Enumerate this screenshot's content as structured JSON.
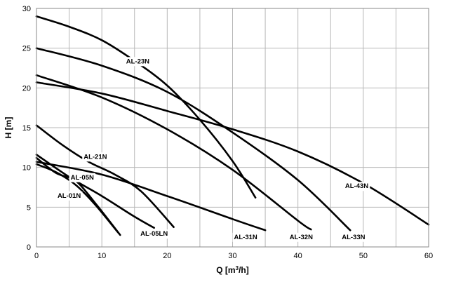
{
  "chart_data": {
    "type": "line",
    "title": "",
    "xlabel": "Q [m3/h]",
    "xlabel_parts": {
      "before": "Q [m",
      "sup": "3",
      "after": "/h]"
    },
    "ylabel": "H [m]",
    "xlim": [
      0,
      60
    ],
    "ylim": [
      0,
      30
    ],
    "xticks": [
      0,
      10,
      20,
      30,
      40,
      50,
      60
    ],
    "yticks": [
      0,
      5,
      10,
      15,
      20,
      25,
      30
    ],
    "grid": true,
    "legend": "none",
    "series": [
      {
        "name": "AL-01N",
        "points": [
          [
            0,
            10.4
          ],
          [
            3,
            9.4
          ],
          [
            6,
            7.8
          ],
          [
            9,
            5.3
          ],
          [
            12.5,
            1.8
          ]
        ],
        "label_at": [
          5,
          6.5
        ]
      },
      {
        "name": "AL-05N",
        "points": [
          [
            0,
            11.2
          ],
          [
            3,
            9.3
          ],
          [
            6,
            8.3
          ],
          [
            9,
            5.5
          ],
          [
            12.8,
            1.5
          ]
        ],
        "label_at": [
          7,
          8.8
        ]
      },
      {
        "name": "AL-05LN",
        "points": [
          [
            0,
            11.6
          ],
          [
            5,
            8.8
          ],
          [
            10,
            6.4
          ],
          [
            15,
            3.8
          ],
          [
            18,
            2.4
          ]
        ],
        "label_at": [
          18,
          1.7
        ]
      },
      {
        "name": "AL-21N",
        "points": [
          [
            0,
            15.3
          ],
          [
            4,
            12.8
          ],
          [
            8,
            10.7
          ],
          [
            12,
            9.1
          ],
          [
            16,
            7
          ],
          [
            21,
            2.5
          ]
        ],
        "label_at": [
          9,
          11.4
        ]
      },
      {
        "name": "AL-23N",
        "points": [
          [
            0,
            29
          ],
          [
            5,
            27.7
          ],
          [
            10,
            26
          ],
          [
            15,
            23.4
          ],
          [
            20,
            20.3
          ],
          [
            25,
            16
          ],
          [
            30,
            10.8
          ],
          [
            33.5,
            6.2
          ]
        ],
        "label_at": [
          15.5,
          23.4
        ]
      },
      {
        "name": "AL-31N",
        "points": [
          [
            0,
            10.7
          ],
          [
            10,
            9.1
          ],
          [
            20,
            6.4
          ],
          [
            30,
            3.5
          ],
          [
            35,
            2.1
          ]
        ],
        "label_at": [
          32,
          1.3
        ]
      },
      {
        "name": "AL-32N",
        "points": [
          [
            0,
            21.6
          ],
          [
            10,
            18.8
          ],
          [
            20,
            14.8
          ],
          [
            30,
            9.7
          ],
          [
            40,
            3.3
          ],
          [
            42,
            2.2
          ]
        ],
        "label_at": [
          40.5,
          1.3
        ]
      },
      {
        "name": "AL-33N",
        "points": [
          [
            0,
            25
          ],
          [
            10,
            22.8
          ],
          [
            20,
            19.5
          ],
          [
            30,
            14.4
          ],
          [
            40,
            8.4
          ],
          [
            48,
            2.1
          ]
        ],
        "label_at": [
          48.5,
          1.3
        ]
      },
      {
        "name": "AL-43N",
        "points": [
          [
            0,
            20.7
          ],
          [
            10,
            19.3
          ],
          [
            20,
            17.1
          ],
          [
            30,
            14.8
          ],
          [
            40,
            12
          ],
          [
            50,
            8
          ],
          [
            60,
            2.8
          ]
        ],
        "label_at": [
          49,
          7.7
        ]
      }
    ]
  }
}
